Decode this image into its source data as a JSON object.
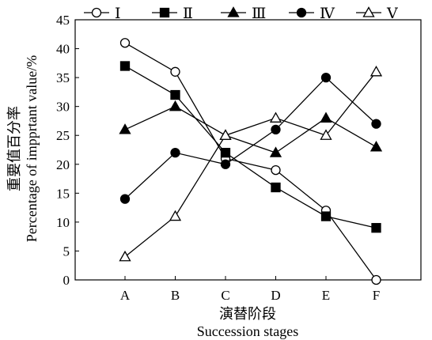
{
  "chart_data": {
    "type": "line",
    "categories": [
      "A",
      "B",
      "C",
      "D",
      "E",
      "F"
    ],
    "ylim": [
      0,
      45
    ],
    "yticks": [
      "0",
      "5",
      "10",
      "15",
      "20",
      "25",
      "30",
      "35",
      "40",
      "45"
    ],
    "ylabel_cn": "重要值百分率",
    "ylabel_en": "Percentage of impprtant value/%",
    "xlabel_cn": "演替阶段",
    "xlabel_en": "Succession stages",
    "grid": false,
    "legend_position": "top",
    "series": [
      {
        "name": "Ⅰ",
        "marker": "circle-open",
        "values": [
          41,
          36,
          21,
          19,
          12,
          0
        ]
      },
      {
        "name": "Ⅱ",
        "marker": "square-filled",
        "values": [
          37,
          32,
          22,
          16,
          11,
          9
        ]
      },
      {
        "name": "Ⅲ",
        "marker": "triangle-filled",
        "values": [
          26,
          30,
          25,
          22,
          28,
          23
        ]
      },
      {
        "name": "Ⅳ",
        "marker": "circle-filled",
        "values": [
          14,
          22,
          20,
          26,
          35,
          27
        ]
      },
      {
        "name": "Ⅴ",
        "marker": "triangle-open",
        "values": [
          4,
          11,
          25,
          28,
          25,
          36
        ]
      }
    ]
  }
}
